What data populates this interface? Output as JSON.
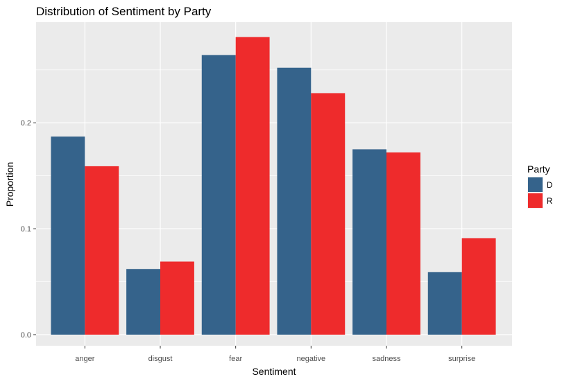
{
  "chart_data": {
    "type": "bar",
    "title": "Distribution of Sentiment by Party",
    "xlabel": "Sentiment",
    "ylabel": "Proportion",
    "categories": [
      "anger",
      "disgust",
      "fear",
      "negative",
      "sadness",
      "surprise"
    ],
    "series": [
      {
        "name": "D",
        "color": "#35638b",
        "values": [
          0.187,
          0.062,
          0.264,
          0.252,
          0.175,
          0.059
        ]
      },
      {
        "name": "R",
        "color": "#ee2b2c",
        "values": [
          0.159,
          0.069,
          0.281,
          0.228,
          0.172,
          0.091
        ]
      }
    ],
    "ylim": [
      0,
      0.295
    ],
    "yticks": [
      0.0,
      0.1,
      0.2
    ],
    "ytick_labels": [
      "0.0",
      "0.1",
      "0.2"
    ],
    "grid": true,
    "legend": {
      "title": "Party",
      "position": "right"
    },
    "panel_background": "#ebebeb",
    "grid_color": "#ffffff"
  }
}
